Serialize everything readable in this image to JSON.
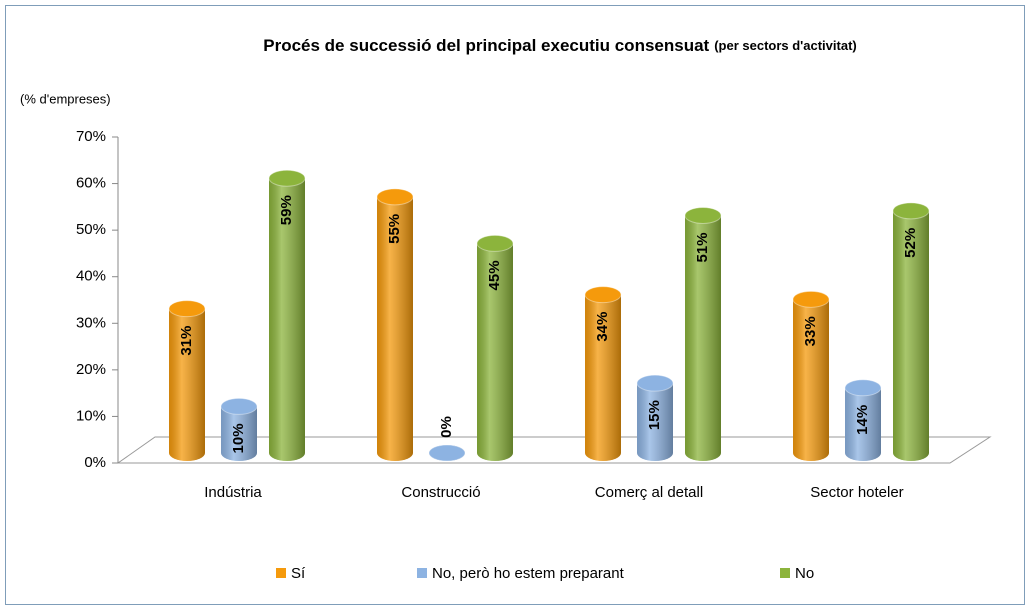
{
  "chart_data": {
    "type": "bar3d",
    "title": "Procés de successió del principal executiu consensuat",
    "subtitle": "(per sectors d'activitat)",
    "y_label": "(% d'empreses)",
    "categories": [
      "Indústria",
      "Construcció",
      "Comerç al detall",
      "Sector hoteler"
    ],
    "series": [
      {
        "name": "Sí",
        "color": "#f59a0c",
        "values": [
          31,
          55,
          34,
          33
        ],
        "value_labels": [
          "31%",
          "55%",
          "34%",
          "33%"
        ]
      },
      {
        "name": "No, però ho estem preparant",
        "color": "#8db3e2",
        "values": [
          10,
          0,
          15,
          14
        ],
        "value_labels": [
          "10%",
          "0%",
          "15%",
          "14%"
        ]
      },
      {
        "name": "No",
        "color": "#8cb43c",
        "values": [
          59,
          45,
          51,
          52
        ],
        "value_labels": [
          "59%",
          "45%",
          "51%",
          "52%"
        ]
      }
    ],
    "ylim": [
      0,
      70
    ],
    "yticks": [
      {
        "value": 0,
        "label": "0%"
      },
      {
        "value": 10,
        "label": "10%"
      },
      {
        "value": 20,
        "label": "20%"
      },
      {
        "value": 30,
        "label": "30%"
      },
      {
        "value": 40,
        "label": "40%"
      },
      {
        "value": 50,
        "label": "50%"
      },
      {
        "value": 60,
        "label": "60%"
      },
      {
        "value": 70,
        "label": "70%"
      }
    ],
    "legend": "bottom",
    "grid": false
  }
}
